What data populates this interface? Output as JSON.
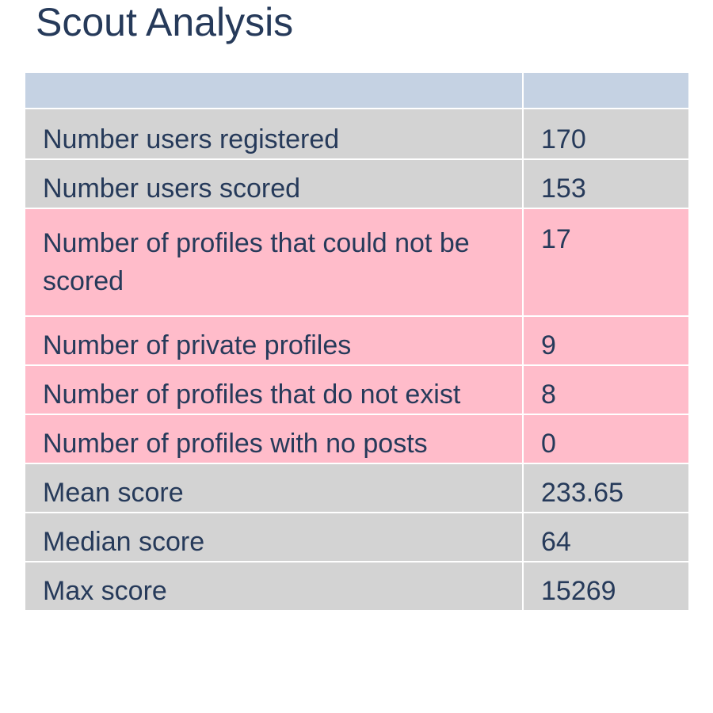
{
  "title": "Scout Analysis",
  "header": {
    "col1": "",
    "col2": ""
  },
  "colors": {
    "header": "#c5d2e3",
    "normal_row": "#d3d3d3",
    "highlight_row": "#ffbcca",
    "text": "#263a5a"
  },
  "chart_data": {
    "type": "table",
    "title": "Scout Analysis",
    "columns": [
      "",
      ""
    ],
    "rows": [
      {
        "label": "Number users registered",
        "value": "170",
        "highlight": false
      },
      {
        "label": "Number users scored",
        "value": "153",
        "highlight": false
      },
      {
        "label": "Number of profiles that could not be scored",
        "value": "17",
        "highlight": true
      },
      {
        "label": "Number of private profiles",
        "value": "9",
        "highlight": true
      },
      {
        "label": "Number of profiles that do not exist",
        "value": "8",
        "highlight": true
      },
      {
        "label": "Number of profiles with no posts",
        "value": "0",
        "highlight": true
      },
      {
        "label": "Mean score",
        "value": "233.65",
        "highlight": false
      },
      {
        "label": "Median score",
        "value": "64",
        "highlight": false
      },
      {
        "label": "Max score",
        "value": "15269",
        "highlight": false
      }
    ]
  }
}
